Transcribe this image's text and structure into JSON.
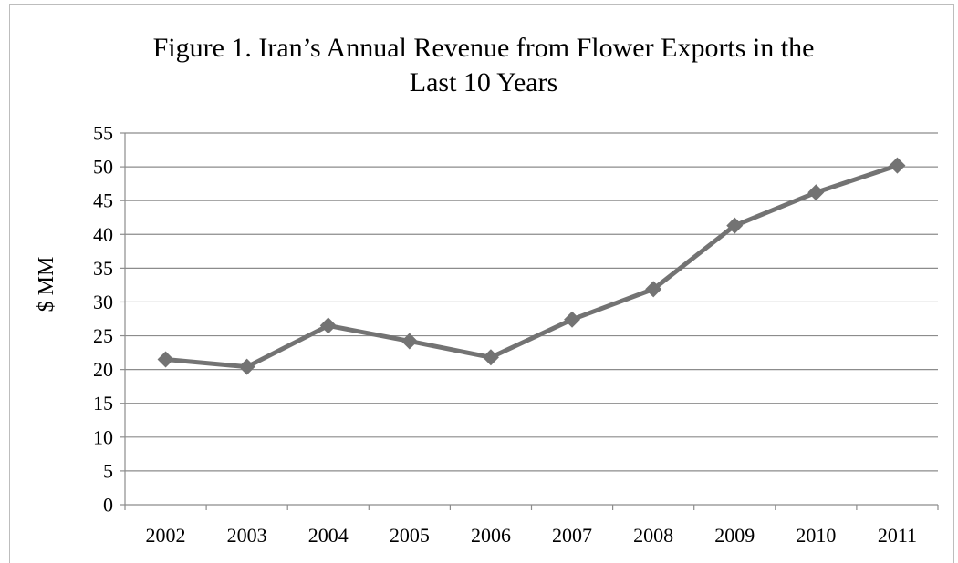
{
  "chart_data": {
    "type": "line",
    "title_line1": "Figure 1. Iran’s Annual Revenue from Flower Exports in the",
    "title_line2": "Last 10 Years",
    "xlabel": "",
    "ylabel": "$ MM",
    "categories": [
      "2002",
      "2003",
      "2004",
      "2005",
      "2006",
      "2007",
      "2008",
      "2009",
      "2010",
      "2011"
    ],
    "series": [
      {
        "values": [
          21.5,
          20.4,
          26.5,
          24.2,
          21.8,
          27.4,
          31.9,
          41.3,
          46.2,
          50.2
        ],
        "color": "#737373",
        "marker": "diamond"
      }
    ],
    "ylim": [
      0,
      55
    ],
    "yticks": [
      0,
      5,
      10,
      15,
      20,
      25,
      30,
      35,
      40,
      45,
      50,
      55
    ],
    "grid": true,
    "legend": "none"
  }
}
